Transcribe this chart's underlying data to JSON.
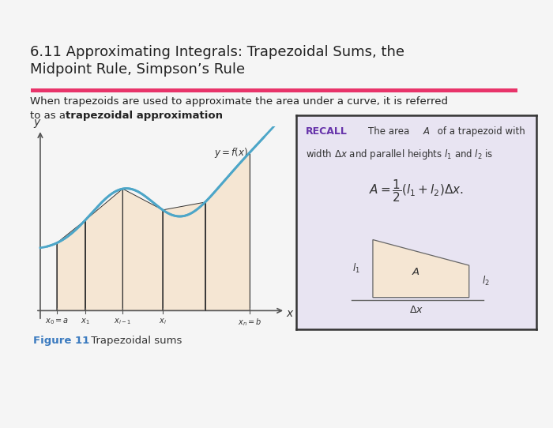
{
  "title_line1": "6.11 Approximating Integrals: Trapezoidal Sums, the",
  "title_line2": "Midpoint Rule, Simpson’s Rule",
  "title_underline_color": "#e8346a",
  "body_line1": "When trapezoids are used to approximate the area under a curve, it is referred",
  "body_line2_pre": "to as a ",
  "body_line2_bold": "trapezoidal approximation",
  "body_line2_post": ".",
  "fig_caption_bold": "Figure 11",
  "fig_caption_text": " Trapezoidal sums",
  "fig_caption_color": "#3a7abf",
  "curve_color": "#4da6c8",
  "trap_fill_color": "#f5e6d3",
  "trap_edge_color": "#333333",
  "axis_color": "#555555",
  "recall_bg": "#e8e4f2",
  "recall_border": "#333333",
  "recall_bold_color": "#6633aa",
  "trap_diagram_fill": "#f5e6d3",
  "bg_color": "#f5f5f5"
}
